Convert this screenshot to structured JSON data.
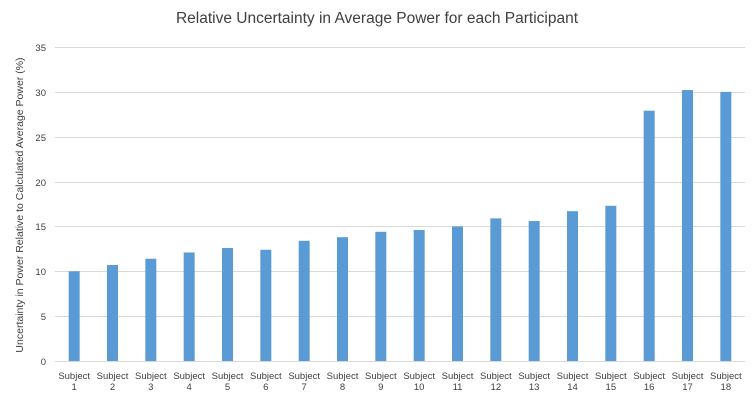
{
  "chart_data": {
    "type": "bar",
    "title": "Relative Uncertainty in Average Power for each Participant",
    "ylabel": "Uncertainty in Power Relative to Calculated Average Power (%)",
    "xlabel": "",
    "ylim": [
      0,
      35
    ],
    "yticks": [
      0,
      5,
      10,
      15,
      20,
      25,
      30,
      35
    ],
    "grid": true,
    "legend": "none",
    "categories": [
      [
        "Subject",
        "1"
      ],
      [
        "Subject",
        "2"
      ],
      [
        "Subject",
        "3"
      ],
      [
        "Subject",
        "4"
      ],
      [
        "Subject",
        "5"
      ],
      [
        "Subject",
        "6"
      ],
      [
        "Subject",
        "7"
      ],
      [
        "Subject",
        "8"
      ],
      [
        "Subject",
        "9"
      ],
      [
        "Subject",
        "10"
      ],
      [
        "Subject",
        "11"
      ],
      [
        "Subject",
        "12"
      ],
      [
        "Subject",
        "13"
      ],
      [
        "Subject",
        "14"
      ],
      [
        "Subject",
        "15"
      ],
      [
        "Subject",
        "16"
      ],
      [
        "Subject",
        "17"
      ],
      [
        "Subject",
        "18"
      ]
    ],
    "values": [
      10.0,
      10.7,
      11.4,
      12.1,
      12.6,
      12.4,
      13.4,
      13.8,
      14.4,
      14.6,
      15.0,
      15.9,
      15.6,
      16.7,
      17.3,
      27.9,
      30.2,
      30.0
    ],
    "bar_color": "#5b9bd5",
    "grid_color": "#d9d9d9",
    "text_color": "#404040"
  }
}
